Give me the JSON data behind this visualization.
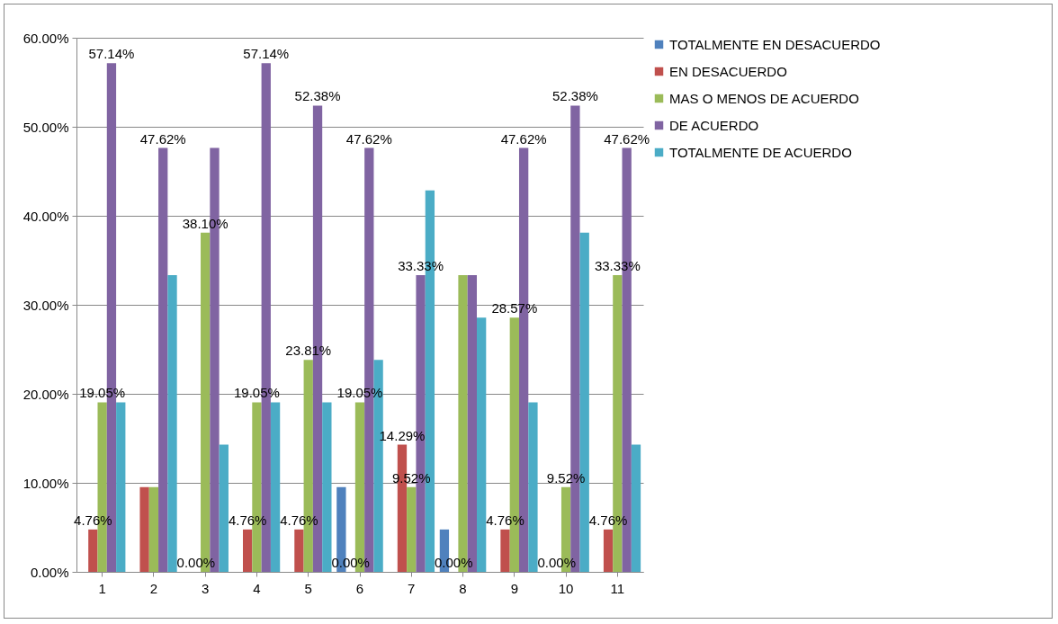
{
  "chart_data": {
    "type": "bar",
    "categories": [
      "1",
      "2",
      "3",
      "4",
      "5",
      "6",
      "7",
      "8",
      "9",
      "10",
      "11"
    ],
    "series": [
      {
        "name": "TOTALMENTE EN DESACUERDO",
        "color": "#4f81bd",
        "values": [
          0,
          0,
          0,
          0,
          0,
          9.52,
          0,
          4.76,
          0,
          0,
          0
        ]
      },
      {
        "name": "EN DESACUERDO",
        "color": "#c0504d",
        "values": [
          4.76,
          9.52,
          0,
          4.76,
          4.76,
          0,
          14.29,
          0,
          4.76,
          0,
          4.76
        ],
        "value_labels": [
          "4.76%",
          null,
          "0.00%",
          "4.76%",
          "4.76%",
          "0.00%",
          "14.29%",
          "0.00%",
          "4.76%",
          "0.00%",
          "4.76%"
        ]
      },
      {
        "name": "MAS O MENOS DE ACUERDO",
        "color": "#9bbb59",
        "values": [
          19.05,
          9.52,
          38.1,
          19.05,
          23.81,
          19.05,
          9.52,
          33.33,
          28.57,
          9.52,
          33.33
        ],
        "value_labels": [
          "19.05%",
          null,
          "38.10%",
          "19.05%",
          "23.81%",
          "19.05%",
          "9.52%",
          null,
          "28.57%",
          "9.52%",
          "33.33%"
        ]
      },
      {
        "name": "DE ACUERDO",
        "color": "#8064a2",
        "values": [
          57.14,
          47.62,
          47.62,
          57.14,
          52.38,
          47.62,
          33.33,
          33.33,
          47.62,
          52.38,
          47.62
        ],
        "value_labels": [
          "57.14%",
          "47.62%",
          null,
          "57.14%",
          "52.38%",
          "47.62%",
          "33.33%",
          null,
          "47.62%",
          "52.38%",
          "47.62%"
        ]
      },
      {
        "name": "TOTALMENTE DE ACUERDO",
        "color": "#4bacc6",
        "values": [
          19.05,
          33.33,
          14.29,
          19.05,
          19.05,
          23.81,
          42.86,
          28.57,
          19.05,
          38.1,
          14.29
        ]
      }
    ],
    "ylim": [
      0,
      60
    ],
    "yticks": [
      {
        "value": 0,
        "label": "0.00%"
      },
      {
        "value": 10,
        "label": "10.00%"
      },
      {
        "value": 20,
        "label": "20.00%"
      },
      {
        "value": 30,
        "label": "30.00%"
      },
      {
        "value": 40,
        "label": "40.00%"
      },
      {
        "value": 50,
        "label": "50.00%"
      },
      {
        "value": 60,
        "label": "60.00%"
      }
    ],
    "grid": "y",
    "legend": "right"
  }
}
